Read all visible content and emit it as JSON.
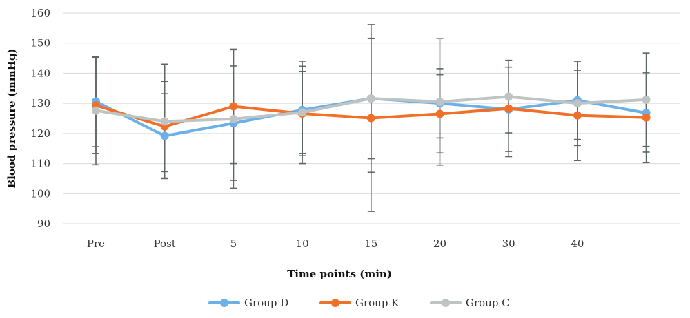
{
  "chart_data": {
    "type": "line",
    "title": "",
    "xlabel": "Time points (min)",
    "ylabel": "Blood pressure (mmHg)",
    "ylim": [
      90,
      160
    ],
    "yticks": [
      90,
      100,
      110,
      120,
      130,
      140,
      150,
      160
    ],
    "grid": true,
    "legend": "bottom-center",
    "categories": [
      "Pre",
      "Post",
      "5",
      "10",
      "15",
      "20",
      "30",
      "40",
      ""
    ],
    "series": [
      {
        "name": "Group D",
        "color": "#6cb0ea",
        "values": [
          130.6,
          119.2,
          123.4,
          127.8,
          131.6,
          130.0,
          128.0,
          131.0,
          126.8
        ],
        "errors": [
          15.0,
          14.0,
          19.0,
          14.5,
          20.0,
          11.5,
          14.0,
          13.0,
          13.0
        ]
      },
      {
        "name": "Group K",
        "color": "#f07029",
        "values": [
          129.3,
          122.3,
          129.0,
          126.6,
          125.1,
          126.5,
          128.3,
          126.0,
          125.3
        ],
        "errors": [
          16.0,
          15.0,
          19.0,
          14.0,
          31.0,
          13.0,
          16.0,
          15.0,
          15.0
        ]
      },
      {
        "name": "Group C",
        "color": "#bec4c3",
        "values": [
          127.6,
          124.0,
          124.8,
          127.0,
          131.6,
          130.5,
          132.2,
          130.0,
          131.2
        ],
        "errors": [
          18.0,
          19.0,
          23.0,
          17.0,
          24.5,
          21.0,
          12.0,
          14.0,
          15.5
        ]
      }
    ]
  }
}
